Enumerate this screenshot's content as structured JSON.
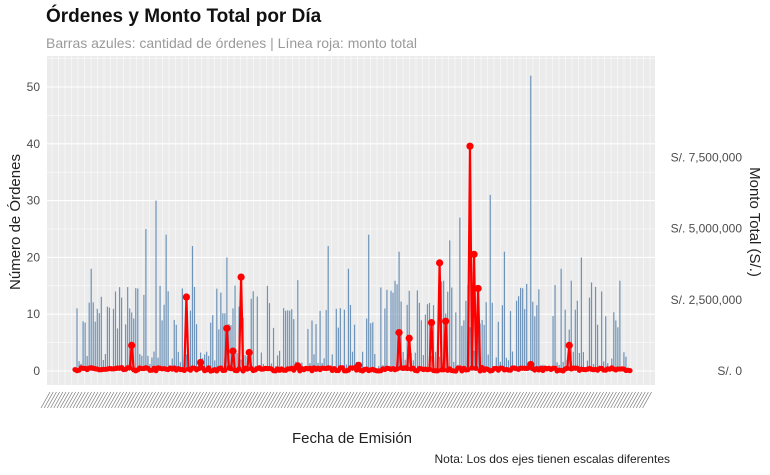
{
  "chart_data": {
    "type": "bar+line",
    "title": "Órdenes y Monto Total por Día",
    "subtitle": "Barras azules: cantidad de órdenes | Línea roja: monto total",
    "xlabel": "Fecha de Emisión",
    "ylabel_left": "Número de Órdenes",
    "ylabel_right": "Monto Total (S/.)",
    "caption": "Nota: Los dos ejes tienen escalas diferentes",
    "left_axis": {
      "ticks": [
        0,
        10,
        20,
        30,
        40,
        50
      ],
      "range": [
        0,
        54
      ]
    },
    "right_axis": {
      "ticks": [
        0,
        2500000,
        5000000,
        7500000
      ],
      "tick_labels": [
        "S/. 0",
        "S/. 2,500,000",
        "S/. 5,000,000",
        "S/. 7,500,000"
      ]
    },
    "x_tick_labels_note": "dense overlapping date labels (unreadable)",
    "grid": true,
    "colors": {
      "bars": "#6e93b8",
      "line": "#ff0000",
      "panel": "#ebebeb",
      "grid": "#ffffff"
    },
    "series": [
      {
        "name": "Órdenes",
        "kind": "bar",
        "peaks": [
          {
            "index": 8,
            "value": 18
          },
          {
            "index": 20,
            "value": 14
          },
          {
            "index": 35,
            "value": 25
          },
          {
            "index": 40,
            "value": 30
          },
          {
            "index": 45,
            "value": 24
          },
          {
            "index": 58,
            "value": 22
          },
          {
            "index": 75,
            "value": 20
          },
          {
            "index": 95,
            "value": 15
          },
          {
            "index": 110,
            "value": 16
          },
          {
            "index": 125,
            "value": 22
          },
          {
            "index": 135,
            "value": 18
          },
          {
            "index": 145,
            "value": 24
          },
          {
            "index": 160,
            "value": 21
          },
          {
            "index": 170,
            "value": 12
          },
          {
            "index": 175,
            "value": 12
          },
          {
            "index": 185,
            "value": 23
          },
          {
            "index": 190,
            "value": 27
          },
          {
            "index": 205,
            "value": 31
          },
          {
            "index": 212,
            "value": 21
          },
          {
            "index": 225,
            "value": 52
          },
          {
            "index": 240,
            "value": 18
          },
          {
            "index": 250,
            "value": 20
          },
          {
            "index": 260,
            "value": 14
          }
        ]
      },
      {
        "name": "Monto Total (S/.)",
        "kind": "line",
        "spikes": [
          {
            "index": 28,
            "value": 900000
          },
          {
            "index": 55,
            "value": 2600000
          },
          {
            "index": 62,
            "value": 300000
          },
          {
            "index": 75,
            "value": 1500000
          },
          {
            "index": 78,
            "value": 700000
          },
          {
            "index": 82,
            "value": 3300000
          },
          {
            "index": 86,
            "value": 650000
          },
          {
            "index": 110,
            "value": 180000
          },
          {
            "index": 140,
            "value": 200000
          },
          {
            "index": 160,
            "value": 1350000
          },
          {
            "index": 165,
            "value": 1150000
          },
          {
            "index": 176,
            "value": 1700000
          },
          {
            "index": 180,
            "value": 3800000
          },
          {
            "index": 183,
            "value": 1750000
          },
          {
            "index": 195,
            "value": 7900000
          },
          {
            "index": 197,
            "value": 4100000
          },
          {
            "index": 199,
            "value": 2900000
          },
          {
            "index": 225,
            "value": 230000
          },
          {
            "index": 244,
            "value": 900000
          }
        ]
      }
    ]
  }
}
